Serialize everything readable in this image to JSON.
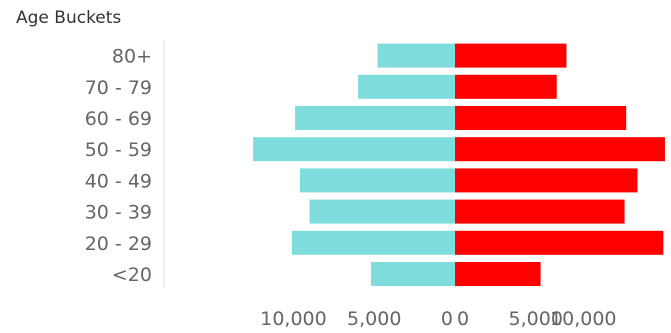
{
  "chart_data": {
    "type": "bar",
    "layout": "diverging-horizontal",
    "dimension_label": "Age Buckets",
    "categories": [
      "80+",
      "70 - 79",
      "60 - 69",
      "50 - 59",
      "40 - 49",
      "30 - 39",
      "20 - 29",
      "<20"
    ],
    "series": [
      {
        "values": [
          4800,
          6000,
          9900,
          12500,
          9600,
          9000,
          10100,
          5200
        ]
      },
      {
        "values": [
          6900,
          6300,
          10600,
          13500,
          11300,
          10500,
          12900,
          5300
        ]
      }
    ],
    "left_axis": {
      "range": [
        0,
        13000
      ],
      "ticks": [
        10000,
        5000,
        0
      ],
      "tick_labels": [
        "10,000",
        "5,000",
        "0"
      ]
    },
    "right_axis": {
      "range": [
        0,
        13000
      ],
      "ticks": [
        0,
        5000,
        10000
      ],
      "tick_labels": [
        "0",
        "5,000",
        "10,000"
      ]
    },
    "colors": [
      "#7fdcdc",
      "#ff0000"
    ],
    "grid": false,
    "legend": "none"
  }
}
